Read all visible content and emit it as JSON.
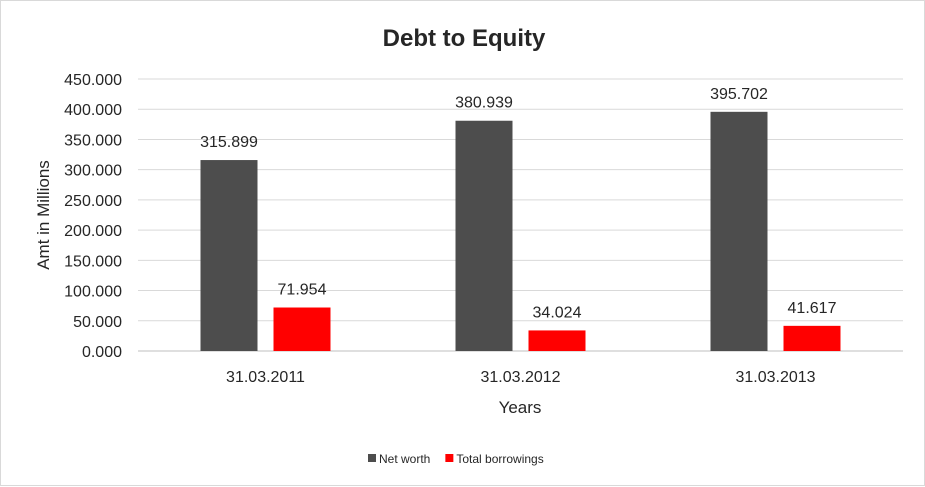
{
  "chart_data": {
    "type": "bar",
    "title": "Debt to Equity",
    "xlabel": "Years",
    "ylabel": "Amt in Millions",
    "categories": [
      "31.03.2011",
      "31.03.2012",
      "31.03.2013"
    ],
    "series": [
      {
        "name": "Net worth",
        "values": [
          315.899,
          380.939,
          395.702
        ],
        "labels": [
          "315.899",
          "380.939",
          "395.702"
        ],
        "color": "#4d4d4d"
      },
      {
        "name": "Total borrowings",
        "values": [
          71.954,
          34.024,
          41.617
        ],
        "labels": [
          "71.954",
          "34.024",
          "41.617"
        ],
        "color": "#ff0000"
      }
    ],
    "yticks": [
      "0.000",
      "50.000",
      "100.000",
      "150.000",
      "200.000",
      "250.000",
      "300.000",
      "350.000",
      "400.000",
      "450.000"
    ],
    "ylim": [
      0,
      450
    ],
    "grid": true,
    "legend_position": "bottom"
  }
}
